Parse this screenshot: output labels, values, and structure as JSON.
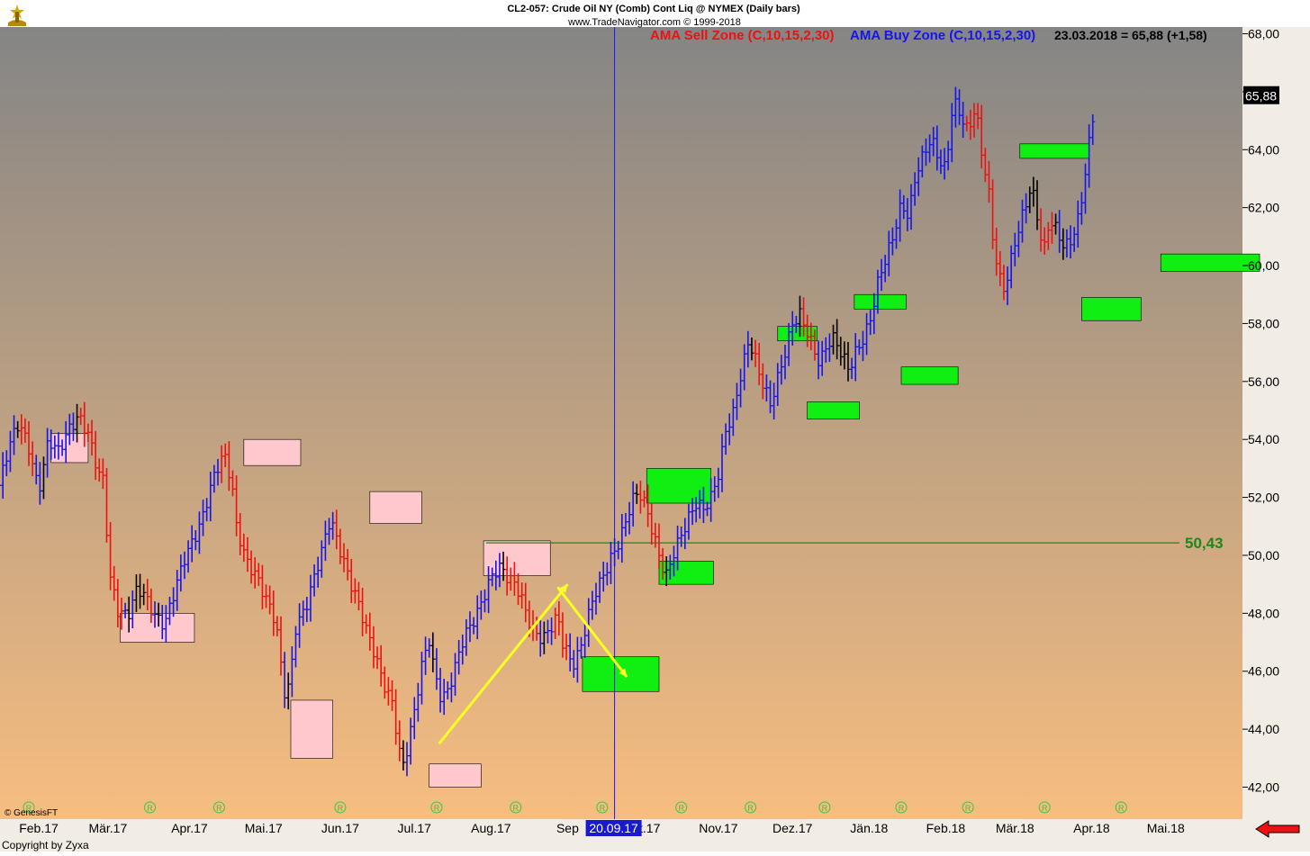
{
  "header": {
    "title": "CL2-057:  Crude Oil NY (Comb) Cont Liq @ NYMEX  (Daily bars)",
    "source": "www.TradeNavigator.com © 1999-2018",
    "sell_zone_label": "AMA Sell Zone (C,10,15,2,30)",
    "buy_zone_label": "AMA Buy Zone (C,10,15,2,30)",
    "last_quote": "23.03.2018 = 65,88 (+1,58)"
  },
  "footer": {
    "genesis": "© GenesisFT",
    "copyright": "Copyright by Zyxa",
    "vline_date": "20.09.17"
  },
  "icons": {
    "logo": "trade-navigator-logo-icon",
    "nav": "red-left-arrow-icon",
    "marker": "r-circle-marker-icon"
  },
  "colors": {
    "bg_top": "#858585",
    "bg_bottom": "#f7bd80",
    "bar_up": "#1515ee",
    "bar_down": "#ee1111",
    "bar_neutral": "#000000",
    "sell_box": "#ffc8cc",
    "buy_box": "#11ee11",
    "hline": "#1a8a1a",
    "vline": "#1a1aff",
    "trend": "#ffff22"
  },
  "chart_data": {
    "type": "bar",
    "title": "CL2-057:  Crude Oil NY (Comb) Cont Liq @ NYMEX  (Daily bars)",
    "x_unit": "days since 2017-02-01",
    "ylim": [
      41.4,
      68.6
    ],
    "yticks": [
      "68,00",
      "66,00",
      "64,00",
      "62,00",
      "60,00",
      "58,00",
      "56,00",
      "54,00",
      "52,00",
      "50,00",
      "48,00",
      "46,00",
      "44,00",
      "42,00"
    ],
    "month_labels": [
      "Feb.17",
      "Mär.17",
      "Apr.17",
      "Mai.17",
      "Jun.17",
      "Jul.17",
      "Aug.17",
      "Sep",
      "Okt.17",
      "Nov.17",
      "Dez.17",
      "Jän.18",
      "Feb.18",
      "Mär.18",
      "Apr.18",
      "Mai.18"
    ],
    "month_x": [
      -2,
      26,
      59,
      89,
      120,
      150,
      181,
      212,
      242,
      273,
      303,
      334,
      365,
      393,
      424,
      454
    ],
    "last_value": "65,88",
    "hline": {
      "value": 50.43,
      "label": "50,43",
      "x_start": 179
    },
    "vline_x": 231,
    "anchors": [
      [
        -36,
        53.4
      ],
      [
        -32,
        52.7
      ],
      [
        -26,
        54.2
      ],
      [
        -22,
        53.1
      ],
      [
        -18,
        52.4
      ],
      [
        -14,
        53.8
      ],
      [
        -10,
        54.6
      ],
      [
        -6,
        53.7
      ],
      [
        -2,
        52.2
      ],
      [
        2,
        54.0
      ],
      [
        6,
        53.6
      ],
      [
        10,
        54.3
      ],
      [
        14,
        54.8
      ],
      [
        18,
        54.2
      ],
      [
        22,
        52.9
      ],
      [
        24,
        52.6
      ],
      [
        27,
        49.2
      ],
      [
        30,
        48.1
      ],
      [
        34,
        47.9
      ],
      [
        38,
        48.9
      ],
      [
        41,
        48.6
      ],
      [
        45,
        47.9
      ],
      [
        49,
        47.6
      ],
      [
        53,
        48.8
      ],
      [
        57,
        49.9
      ],
      [
        61,
        50.6
      ],
      [
        64,
        51.2
      ],
      [
        67,
        52.2
      ],
      [
        70,
        53.0
      ],
      [
        73,
        53.5
      ],
      [
        76,
        52.6
      ],
      [
        78,
        51.0
      ],
      [
        82,
        49.8
      ],
      [
        86,
        49.3
      ],
      [
        90,
        48.5
      ],
      [
        94,
        47.7
      ],
      [
        96,
        46.2
      ],
      [
        98,
        45.0
      ],
      [
        100,
        45.9
      ],
      [
        102,
        47.5
      ],
      [
        106,
        48.2
      ],
      [
        110,
        49.4
      ],
      [
        113,
        50.3
      ],
      [
        116,
        51.3
      ],
      [
        118,
        50.7
      ],
      [
        121,
        49.9
      ],
      [
        124,
        49.1
      ],
      [
        128,
        48.2
      ],
      [
        131,
        47.3
      ],
      [
        134,
        46.6
      ],
      [
        137,
        45.7
      ],
      [
        141,
        44.9
      ],
      [
        143,
        43.8
      ],
      [
        145,
        42.6
      ],
      [
        147,
        43.3
      ],
      [
        150,
        44.6
      ],
      [
        153,
        46.2
      ],
      [
        156,
        47.1
      ],
      [
        158,
        46.0
      ],
      [
        161,
        45.0
      ],
      [
        164,
        45.4
      ],
      [
        167,
        46.3
      ],
      [
        170,
        47.2
      ],
      [
        173,
        47.6
      ],
      [
        176,
        48.1
      ],
      [
        179,
        48.8
      ],
      [
        182,
        49.4
      ],
      [
        185,
        49.6
      ],
      [
        188,
        49.2
      ],
      [
        191,
        49.0
      ],
      [
        193,
        48.6
      ],
      [
        196,
        47.8
      ],
      [
        199,
        47.3
      ],
      [
        202,
        47.1
      ],
      [
        205,
        47.5
      ],
      [
        208,
        47.9
      ],
      [
        210,
        47.0
      ],
      [
        212,
        46.6
      ],
      [
        214,
        46.2
      ],
      [
        217,
        46.7
      ],
      [
        220,
        47.8
      ],
      [
        223,
        48.7
      ],
      [
        226,
        49.2
      ],
      [
        229,
        49.8
      ],
      [
        232,
        50.3
      ],
      [
        235,
        51.0
      ],
      [
        238,
        51.9
      ],
      [
        241,
        52.2
      ],
      [
        244,
        51.6
      ],
      [
        247,
        50.6
      ],
      [
        250,
        49.7
      ],
      [
        252,
        49.3
      ],
      [
        255,
        50.1
      ],
      [
        258,
        50.7
      ],
      [
        261,
        51.3
      ],
      [
        264,
        51.8
      ],
      [
        267,
        51.6
      ],
      [
        270,
        52.0
      ],
      [
        273,
        52.8
      ],
      [
        276,
        54.3
      ],
      [
        279,
        54.9
      ],
      [
        282,
        56.2
      ],
      [
        285,
        57.3
      ],
      [
        287,
        57.1
      ],
      [
        289,
        56.4
      ],
      [
        292,
        55.7
      ],
      [
        294,
        55.2
      ],
      [
        297,
        56.1
      ],
      [
        300,
        57.0
      ],
      [
        303,
        58.0
      ],
      [
        306,
        58.3
      ],
      [
        309,
        57.7
      ],
      [
        312,
        57.0
      ],
      [
        314,
        56.6
      ],
      [
        317,
        57.3
      ],
      [
        320,
        57.5
      ],
      [
        323,
        56.9
      ],
      [
        326,
        56.4
      ],
      [
        329,
        57.1
      ],
      [
        332,
        57.5
      ],
      [
        335,
        58.3
      ],
      [
        338,
        59.6
      ],
      [
        341,
        60.3
      ],
      [
        344,
        61.1
      ],
      [
        347,
        62.1
      ],
      [
        350,
        61.7
      ],
      [
        353,
        63.2
      ],
      [
        356,
        63.8
      ],
      [
        359,
        64.4
      ],
      [
        362,
        63.7
      ],
      [
        365,
        63.3
      ],
      [
        368,
        65.7
      ],
      [
        371,
        65.2
      ],
      [
        374,
        64.6
      ],
      [
        377,
        65.5
      ],
      [
        380,
        63.6
      ],
      [
        382,
        62.9
      ],
      [
        384,
        61.0
      ],
      [
        386,
        59.9
      ],
      [
        388,
        59.1
      ],
      [
        390,
        59.6
      ],
      [
        393,
        60.8
      ],
      [
        396,
        61.7
      ],
      [
        399,
        62.6
      ],
      [
        401,
        62.3
      ],
      [
        403,
        61.1
      ],
      [
        405,
        60.6
      ],
      [
        407,
        61.6
      ],
      [
        410,
        61.2
      ],
      [
        413,
        60.6
      ],
      [
        416,
        60.9
      ],
      [
        419,
        61.7
      ],
      [
        421,
        62.9
      ],
      [
        423,
        64.2
      ],
      [
        425,
        65.4
      ]
    ],
    "bars_generated_from_anchors": "one bar per x step of 1.5 from -36 to 425 (daily bars)",
    "bar_color_rule": "blue = above AMA (buy zone), red = below (sell zone), black = neutral",
    "sell_zones": [
      {
        "x0": 3,
        "x1": 18,
        "y0": 53.2,
        "y1": 54.2
      },
      {
        "x0": 31,
        "x1": 61,
        "y0": 47.0,
        "y1": 48.0
      },
      {
        "x0": 81,
        "x1": 104,
        "y0": 53.1,
        "y1": 54.0
      },
      {
        "x0": 100,
        "x1": 117,
        "y0": 43.0,
        "y1": 45.0
      },
      {
        "x0": 132,
        "x1": 153,
        "y0": 51.1,
        "y1": 52.2
      },
      {
        "x0": 156,
        "x1": 177,
        "y0": 42.0,
        "y1": 42.8
      },
      {
        "x0": 178,
        "x1": 205,
        "y0": 49.3,
        "y1": 50.5
      }
    ],
    "buy_zones": [
      {
        "x0": 218,
        "x1": 249,
        "y0": 45.3,
        "y1": 46.5
      },
      {
        "x0": 244,
        "x1": 270,
        "y0": 51.8,
        "y1": 53.0
      },
      {
        "x0": 249,
        "x1": 271,
        "y0": 49.0,
        "y1": 49.8
      },
      {
        "x0": 297,
        "x1": 313,
        "y0": 57.4,
        "y1": 57.9
      },
      {
        "x0": 309,
        "x1": 330,
        "y0": 54.7,
        "y1": 55.3
      },
      {
        "x0": 328,
        "x1": 349,
        "y0": 58.5,
        "y1": 59.0
      },
      {
        "x0": 347,
        "x1": 370,
        "y0": 55.9,
        "y1": 56.5
      },
      {
        "x0": 395,
        "x1": 423,
        "y0": 63.7,
        "y1": 64.2
      },
      {
        "x0": 420,
        "x1": 444,
        "y0": 58.1,
        "y1": 58.9
      },
      {
        "x0": 452,
        "x1": 492,
        "y0": 59.8,
        "y1": 60.4
      }
    ],
    "trend_arrows": [
      {
        "x0": 160,
        "x1": 212,
        "y0": 43.5,
        "y1": 49.0
      },
      {
        "x0": 208,
        "x1": 236,
        "y0": 48.9,
        "y1": 45.8
      }
    ],
    "r_markers_x": [
      -6,
      43,
      71,
      120,
      159,
      191,
      226,
      258,
      286,
      316,
      347,
      374,
      405,
      436
    ]
  }
}
